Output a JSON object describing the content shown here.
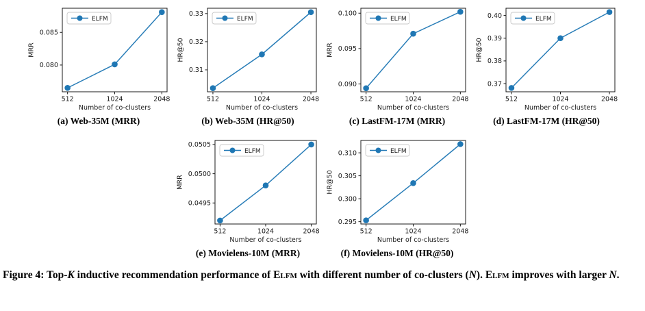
{
  "colors": {
    "accent": "#1f77b4",
    "axis": "#1a1a1a",
    "legend_border": "#c9c9c9"
  },
  "caption": {
    "part1": "Figure 4: Top-",
    "k": "K",
    "part2": " inductive recommendation performance of ",
    "elfm1": "Elfm",
    "part3": " with different number of co-clusters (",
    "n1": "N",
    "part4": "). ",
    "elfm2": "Elfm",
    "part5": " improves with larger ",
    "n2": "N",
    "part6": "."
  },
  "chart_data": [
    {
      "id": "a",
      "type": "line",
      "caption": "(a) Web-35M (MRR)",
      "categories": [
        "512",
        "1024",
        "2048"
      ],
      "series": [
        {
          "name": "ELFM",
          "values": [
            0.0765,
            0.0801,
            0.0881
          ]
        }
      ],
      "xlabel": "Number of co-clusters",
      "ylabel": "MRR",
      "ylim": [
        0.0759,
        0.0887
      ],
      "yticks": [
        0.08,
        0.085
      ],
      "ytick_labels": [
        "0.080",
        "0.085"
      ],
      "legend_position": "upper left",
      "grid": false
    },
    {
      "id": "b",
      "type": "line",
      "caption": "(b) Web-35M (HR@50)",
      "categories": [
        "512",
        "1024",
        "2048"
      ],
      "series": [
        {
          "name": "ELFM",
          "values": [
            0.3035,
            0.3155,
            0.3305
          ]
        }
      ],
      "xlabel": "Number of co-clusters",
      "ylabel": "HR@50",
      "ylim": [
        0.3022,
        0.3319
      ],
      "yticks": [
        0.31,
        0.32,
        0.33
      ],
      "ytick_labels": [
        "0.31",
        "0.32",
        "0.33"
      ],
      "legend_position": "upper left",
      "grid": false
    },
    {
      "id": "c",
      "type": "line",
      "caption": "(c) LastFM-17M (MRR)",
      "categories": [
        "512",
        "1024",
        "2048"
      ],
      "series": [
        {
          "name": "ELFM",
          "values": [
            0.0894,
            0.0971,
            0.1002
          ]
        }
      ],
      "xlabel": "Number of co-clusters",
      "ylabel": "MRR",
      "ylim": [
        0.0889,
        0.1007
      ],
      "yticks": [
        0.09,
        0.095,
        0.1
      ],
      "ytick_labels": [
        "0.090",
        "0.095",
        "0.100"
      ],
      "legend_position": "upper left",
      "grid": false
    },
    {
      "id": "d",
      "type": "line",
      "caption": "(d) LastFM-17M (HR@50)",
      "categories": [
        "512",
        "1024",
        "2048"
      ],
      "series": [
        {
          "name": "ELFM",
          "values": [
            0.3681,
            0.39,
            0.4015
          ]
        }
      ],
      "xlabel": "Number of co-clusters",
      "ylabel": "HR@50",
      "ylim": [
        0.3664,
        0.4032
      ],
      "yticks": [
        0.37,
        0.38,
        0.39,
        0.4
      ],
      "ytick_labels": [
        "0.37",
        "0.38",
        "0.39",
        "0.40"
      ],
      "legend_position": "upper left",
      "grid": false
    },
    {
      "id": "e",
      "type": "line",
      "caption": "(e) Movielens-10M (MRR)",
      "categories": [
        "512",
        "1024",
        "2048"
      ],
      "series": [
        {
          "name": "ELFM",
          "values": [
            0.0492,
            0.0498,
            0.0505
          ]
        }
      ],
      "xlabel": "Number of co-clusters",
      "ylabel": "MRR",
      "ylim": [
        0.04914,
        0.05057
      ],
      "yticks": [
        0.0495,
        0.05,
        0.0505
      ],
      "ytick_labels": [
        "0.0495",
        "0.0500",
        "0.0505"
      ],
      "legend_position": "upper left",
      "grid": false
    },
    {
      "id": "f",
      "type": "line",
      "caption": "(f) Movielens-10M (HR@50)",
      "categories": [
        "512",
        "1024",
        "2048"
      ],
      "series": [
        {
          "name": "ELFM",
          "values": [
            0.2953,
            0.3034,
            0.3119
          ]
        }
      ],
      "xlabel": "Number of co-clusters",
      "ylabel": "HR@50",
      "ylim": [
        0.2945,
        0.3127
      ],
      "yticks": [
        0.295,
        0.3,
        0.305,
        0.31
      ],
      "ytick_labels": [
        "0.295",
        "0.300",
        "0.305",
        "0.310"
      ],
      "legend_position": "upper left",
      "grid": false
    }
  ]
}
